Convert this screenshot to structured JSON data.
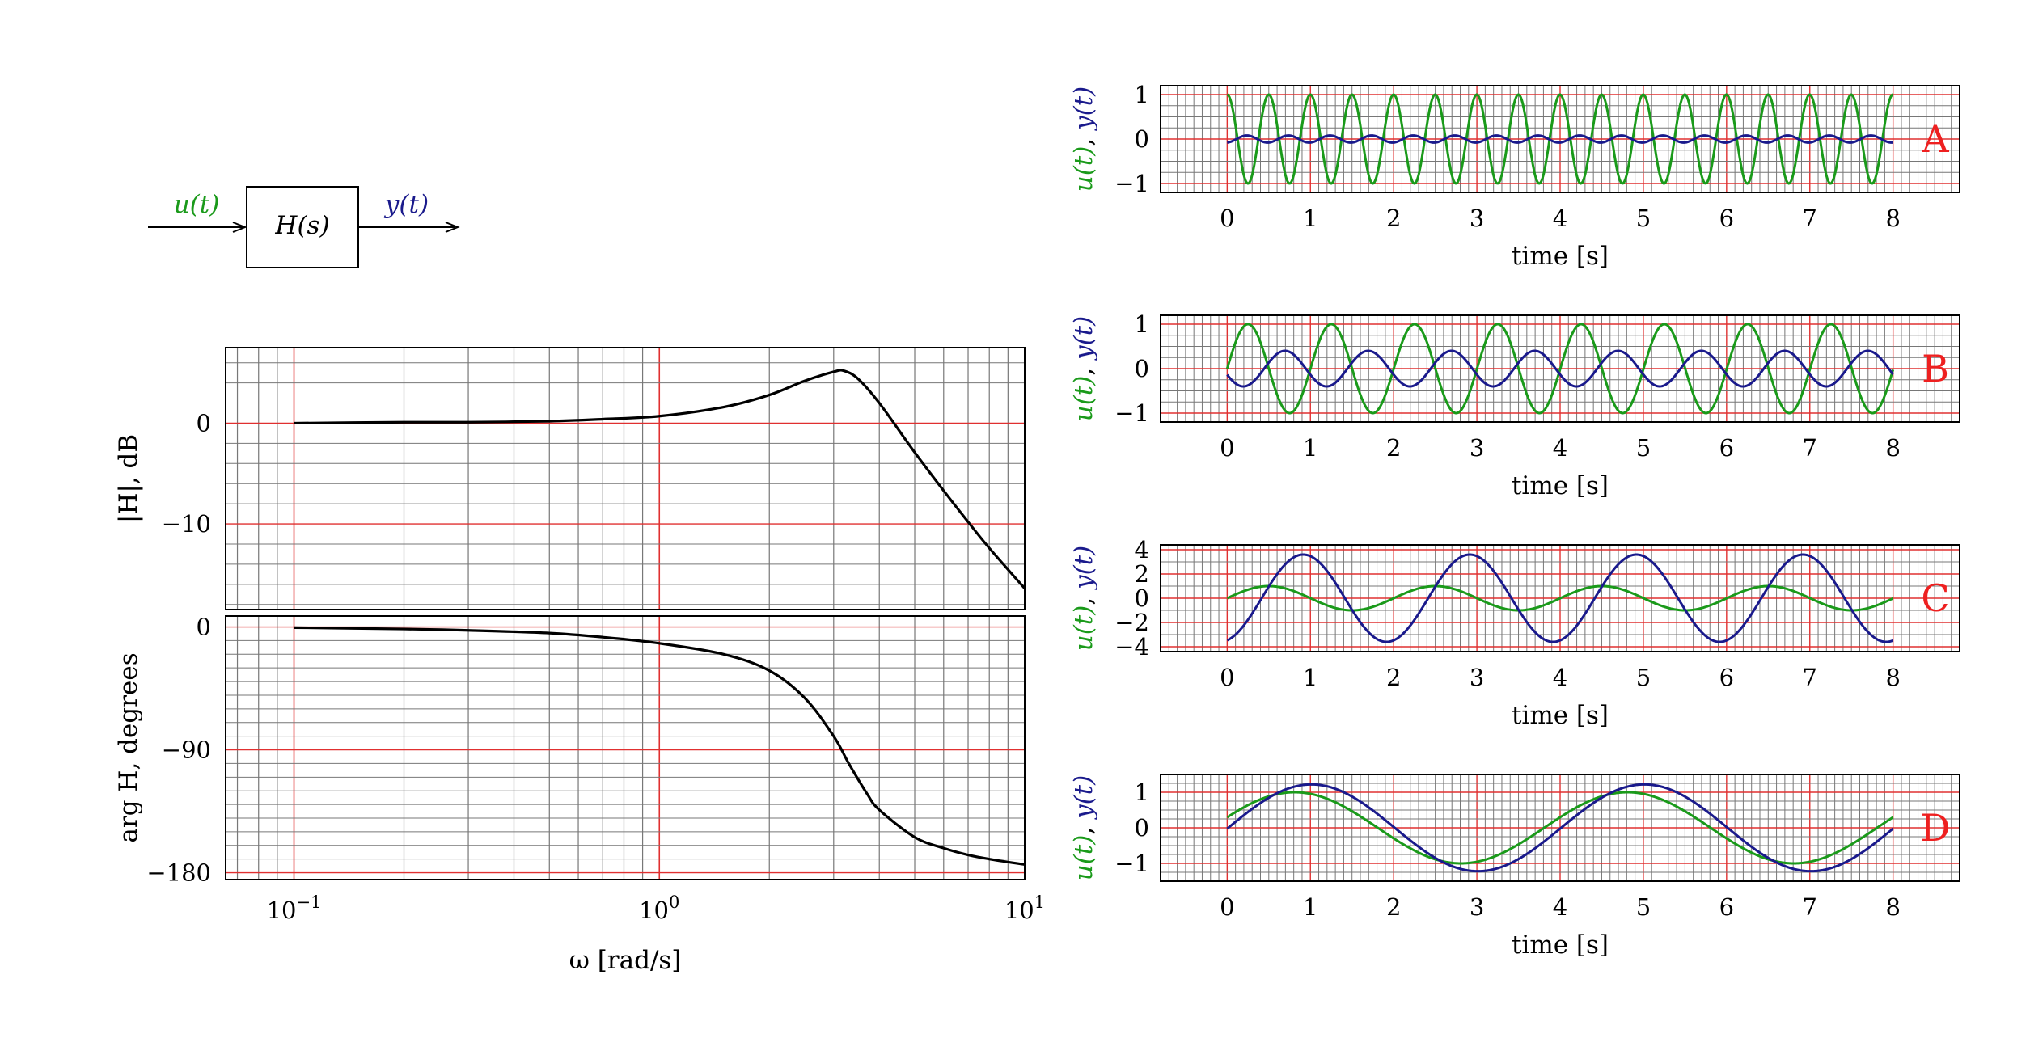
{
  "colors": {
    "input": "#1a9a1a",
    "output": "#1a1a8c",
    "grid_major": "#e03030",
    "grid_minor": "#777777",
    "bode_curve": "#000000",
    "letter": "#ee2020"
  },
  "block_diagram": {
    "input_label": "u(t)",
    "block_label": "H(s)",
    "output_label": "y(t)"
  },
  "chart_data": [
    {
      "type": "line",
      "id": "bode-magnitude",
      "title": "",
      "xscale": "log",
      "xlim": [
        0.065,
        10
      ],
      "ylabel": "|H|, dB",
      "ylim": [
        -18.5,
        7.5
      ],
      "yticks": [
        0,
        -10
      ],
      "ytick_labels": [
        "0",
        "−10"
      ],
      "grid": true,
      "series": [
        {
          "x": [
            0.1,
            0.2,
            0.3,
            0.5,
            0.7,
            1.0,
            1.5,
            2.0,
            2.5,
            3.0,
            3.2,
            3.5,
            4.0,
            5.0,
            6.0,
            7.0,
            8.0,
            10.0
          ],
          "values": [
            0.0,
            0.1,
            0.1,
            0.2,
            0.4,
            0.7,
            1.6,
            2.8,
            4.2,
            5.1,
            5.2,
            4.4,
            2.0,
            -2.9,
            -6.7,
            -9.8,
            -12.4,
            -16.4
          ]
        }
      ]
    },
    {
      "type": "line",
      "id": "bode-phase",
      "xscale": "log",
      "xlim": [
        0.065,
        10
      ],
      "xlabel": "ω [rad/s]",
      "xticks": [
        0.1,
        1,
        10
      ],
      "xtick_labels": [
        "10",
        "10",
        "10"
      ],
      "xtick_exponents": [
        "−1",
        "0",
        "1"
      ],
      "ylabel": "arg H, degrees",
      "ylim": [
        -185,
        8
      ],
      "yticks": [
        0,
        -90,
        -180
      ],
      "ytick_labels": [
        "0",
        "−90",
        "−180"
      ],
      "grid": true,
      "series": [
        {
          "x": [
            0.1,
            0.2,
            0.3,
            0.5,
            0.7,
            1.0,
            1.5,
            2.0,
            2.5,
            3.0,
            3.3,
            3.7,
            4.0,
            5.0,
            6.0,
            7.0,
            8.0,
            10.0
          ],
          "values": [
            -0.5,
            -1.5,
            -2.5,
            -4.5,
            -7.5,
            -12,
            -20,
            -32,
            -52,
            -80,
            -100,
            -122,
            -134,
            -154,
            -162,
            -167,
            -170,
            -174
          ]
        }
      ]
    },
    {
      "type": "line",
      "id": "panel-A",
      "panel_label": "A",
      "xlabel": "time [s]",
      "xlim": [
        -0.8,
        8.8
      ],
      "xticks": [
        0,
        1,
        2,
        3,
        4,
        5,
        6,
        7,
        8
      ],
      "xtick_labels": [
        "0",
        "1",
        "2",
        "3",
        "4",
        "5",
        "6",
        "7",
        "8"
      ],
      "ylabel_parts": [
        "u(t)",
        ", ",
        "y(t)"
      ],
      "ylim": [
        -1.2,
        1.2
      ],
      "yticks": [
        1,
        0,
        -1
      ],
      "ytick_labels": [
        "1",
        "0",
        "−1"
      ],
      "grid": true,
      "series": [
        {
          "role": "input",
          "formula": "u = sin(ω t + 1.57)",
          "omega": 12.57,
          "amplitude": 1.0,
          "phase": 1.57
        },
        {
          "role": "output",
          "formula": "y = 0.08 sin(ω t − 1.4)",
          "omega": 12.57,
          "amplitude": 0.08,
          "phase": -1.4
        }
      ]
    },
    {
      "type": "line",
      "id": "panel-B",
      "panel_label": "B",
      "xlabel": "time [s]",
      "xlim": [
        -0.8,
        8.8
      ],
      "xticks": [
        0,
        1,
        2,
        3,
        4,
        5,
        6,
        7,
        8
      ],
      "xtick_labels": [
        "0",
        "1",
        "2",
        "3",
        "4",
        "5",
        "6",
        "7",
        "8"
      ],
      "ylabel_parts": [
        "u(t)",
        ", ",
        "y(t)"
      ],
      "ylim": [
        -1.2,
        1.2
      ],
      "yticks": [
        1,
        0,
        -1
      ],
      "ytick_labels": [
        "1",
        "0",
        "−1"
      ],
      "grid": true,
      "series": [
        {
          "role": "input",
          "formula": "u = sin(ω t)",
          "omega": 6.28,
          "amplitude": 1.0,
          "phase": 0.0
        },
        {
          "role": "output",
          "formula": "y = 0.4 sin(ω t − 2.79)",
          "omega": 6.28,
          "amplitude": 0.4,
          "phase": -2.79
        }
      ]
    },
    {
      "type": "line",
      "id": "panel-C",
      "panel_label": "C",
      "xlabel": "time [s]",
      "xlim": [
        -0.8,
        8.8
      ],
      "xticks": [
        0,
        1,
        2,
        3,
        4,
        5,
        6,
        7,
        8
      ],
      "xtick_labels": [
        "0",
        "1",
        "2",
        "3",
        "4",
        "5",
        "6",
        "7",
        "8"
      ],
      "ylabel_parts": [
        "u(t)",
        ", ",
        "y(t)"
      ],
      "ylim": [
        -4.4,
        4.4
      ],
      "yticks": [
        4,
        2,
        0,
        -2,
        -4
      ],
      "ytick_labels": [
        "4",
        "2",
        "0",
        "−2",
        "−4"
      ],
      "grid": true,
      "series": [
        {
          "role": "input",
          "formula": "u = sin(ω t)",
          "omega": 3.14,
          "amplitude": 1.0,
          "phase": 0.0
        },
        {
          "role": "output",
          "formula": "y = 3.6 sin(ω t − 1.3)",
          "omega": 3.14,
          "amplitude": 3.6,
          "phase": -1.3
        }
      ]
    },
    {
      "type": "line",
      "id": "panel-D",
      "panel_label": "D",
      "xlabel": "time [s]",
      "xlim": [
        -0.8,
        8.8
      ],
      "xticks": [
        0,
        1,
        2,
        3,
        4,
        5,
        6,
        7,
        8
      ],
      "xtick_labels": [
        "0",
        "1",
        "2",
        "3",
        "4",
        "5",
        "6",
        "7",
        "8"
      ],
      "ylabel_parts": [
        "u(t)",
        ", ",
        "y(t)"
      ],
      "ylim": [
        -1.5,
        1.5
      ],
      "yticks": [
        1,
        0,
        -1
      ],
      "ytick_labels": [
        "1",
        "0",
        "−1"
      ],
      "grid": true,
      "series": [
        {
          "role": "input",
          "formula": "u = sin(ω t + 0.3)",
          "omega": 1.571,
          "amplitude": 1.0,
          "phase": 0.3
        },
        {
          "role": "output",
          "formula": "y = 1.22 sin(ω t − 0.02)",
          "omega": 1.571,
          "amplitude": 1.22,
          "phase": -0.02
        }
      ]
    }
  ]
}
